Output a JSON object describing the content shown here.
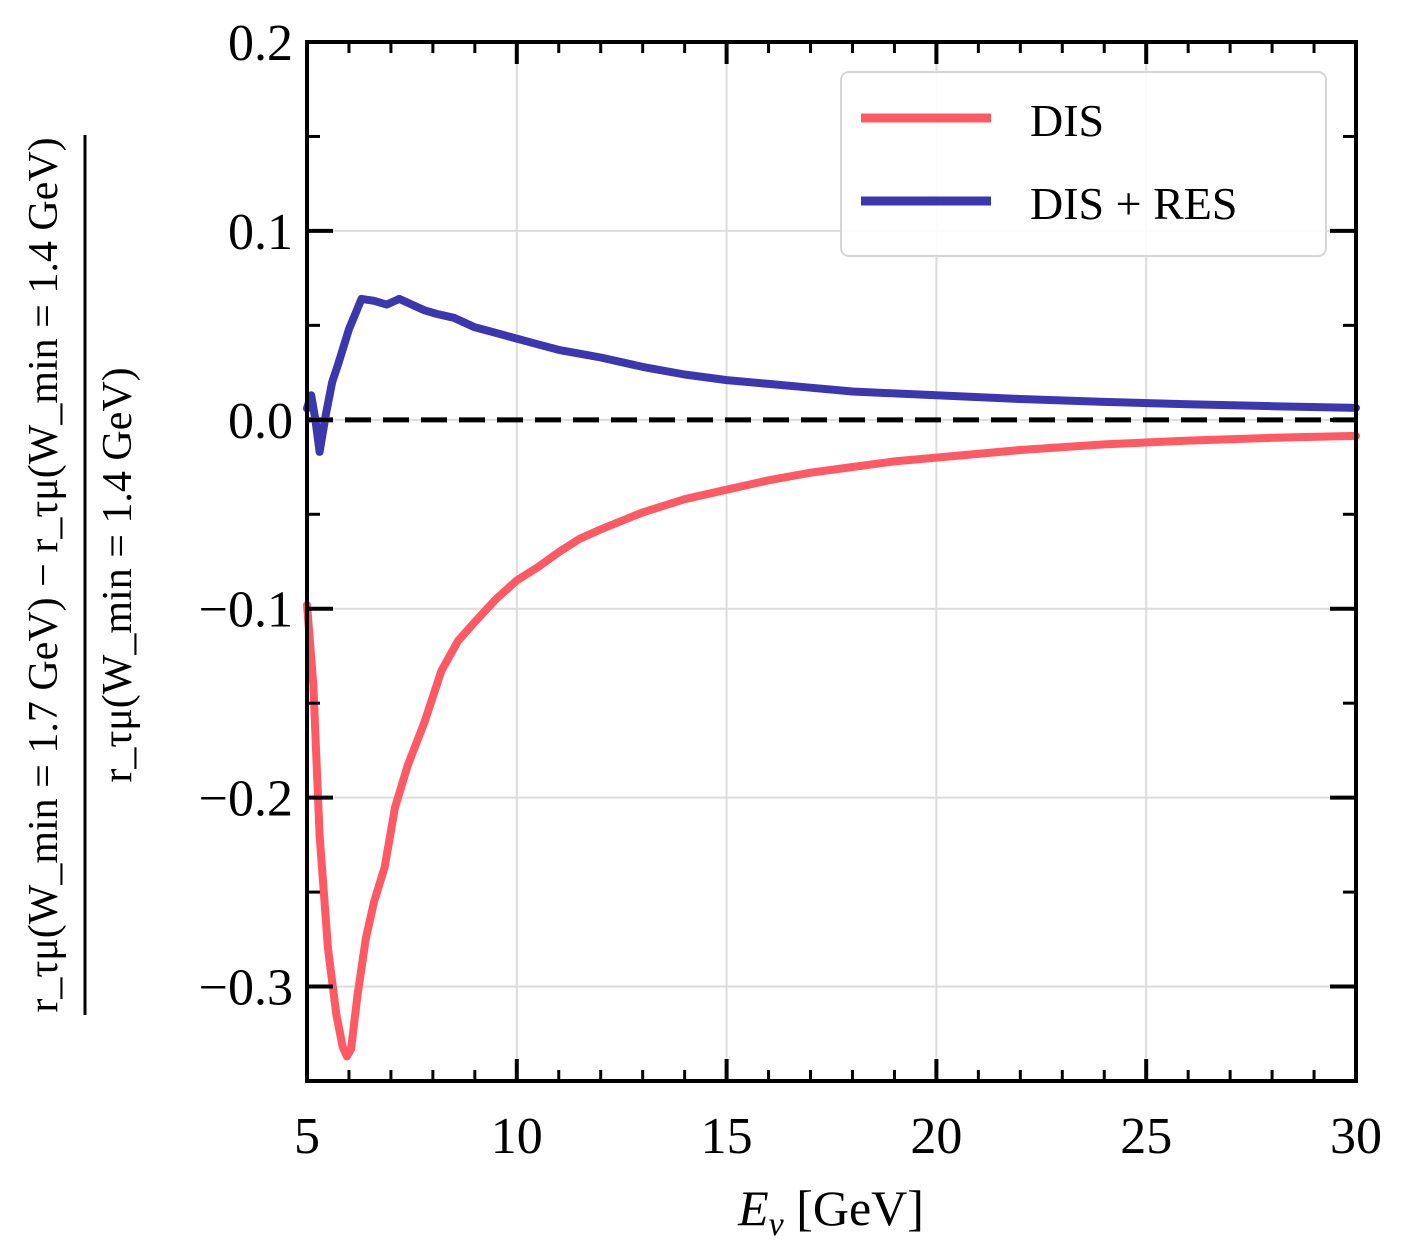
{
  "chart_data": {
    "type": "line",
    "xlabel": {
      "var": "E",
      "sub": "ν",
      "unit": " [GeV]"
    },
    "ylabel": {
      "numerator": "r_τμ(W_min = 1.7 GeV) − r_τμ(W_min = 1.4 GeV)",
      "denominator": "r_τμ(W_min = 1.4 GeV)"
    },
    "xlim": [
      5,
      30
    ],
    "ylim": [
      -0.35,
      0.2
    ],
    "xticks": [
      5,
      10,
      15,
      20,
      25,
      30
    ],
    "xtick_labels": [
      "5",
      "10",
      "15",
      "20",
      "25",
      "30"
    ],
    "yticks": [
      -0.3,
      -0.2,
      -0.1,
      0.0,
      0.1,
      0.2
    ],
    "ytick_labels": [
      "−0.3",
      "−0.2",
      "−0.1",
      "0.0",
      "0.1",
      "0.2"
    ],
    "grid": true,
    "legend_position": "top-right",
    "reference_line": {
      "y": 0.0,
      "style": "dashed",
      "color": "#000000"
    },
    "series": [
      {
        "name": "DIS",
        "color": "#ff5964",
        "x": [
          5.0,
          5.15,
          5.3,
          5.5,
          5.7,
          5.85,
          5.95,
          6.05,
          6.2,
          6.4,
          6.6,
          6.85,
          7.1,
          7.4,
          7.8,
          8.2,
          8.6,
          9.0,
          9.5,
          10.0,
          10.5,
          11.0,
          11.5,
          12.0,
          13.0,
          14.0,
          15.0,
          16.0,
          17.0,
          18.0,
          19.0,
          20.0,
          22.0,
          24.0,
          26.0,
          28.0,
          30.0
        ],
        "y": [
          -0.098,
          -0.14,
          -0.22,
          -0.28,
          -0.315,
          -0.332,
          -0.337,
          -0.333,
          -0.305,
          -0.275,
          -0.255,
          -0.237,
          -0.205,
          -0.183,
          -0.16,
          -0.133,
          -0.117,
          -0.107,
          -0.095,
          -0.085,
          -0.078,
          -0.07,
          -0.063,
          -0.058,
          -0.049,
          -0.042,
          -0.037,
          -0.032,
          -0.028,
          -0.025,
          -0.022,
          -0.02,
          -0.016,
          -0.013,
          -0.011,
          -0.0095,
          -0.0085
        ]
      },
      {
        "name": "DIS + RES",
        "color": "#3c37ae",
        "x": [
          5.0,
          5.1,
          5.2,
          5.3,
          5.45,
          5.6,
          5.75,
          6.0,
          6.3,
          6.6,
          6.9,
          7.2,
          7.5,
          7.8,
          8.1,
          8.5,
          9.0,
          9.5,
          10.0,
          10.5,
          11.0,
          11.5,
          12.0,
          13.0,
          14.0,
          15.0,
          16.0,
          17.0,
          18.0,
          19.0,
          20.0,
          22.0,
          24.0,
          26.0,
          28.0,
          30.0
        ],
        "y": [
          0.006,
          0.013,
          0.0,
          -0.017,
          0.003,
          0.02,
          0.03,
          0.048,
          0.064,
          0.063,
          0.061,
          0.064,
          0.061,
          0.058,
          0.056,
          0.054,
          0.049,
          0.046,
          0.043,
          0.04,
          0.037,
          0.035,
          0.033,
          0.028,
          0.024,
          0.021,
          0.019,
          0.017,
          0.015,
          0.014,
          0.013,
          0.011,
          0.0095,
          0.0082,
          0.0072,
          0.0063
        ]
      }
    ]
  }
}
